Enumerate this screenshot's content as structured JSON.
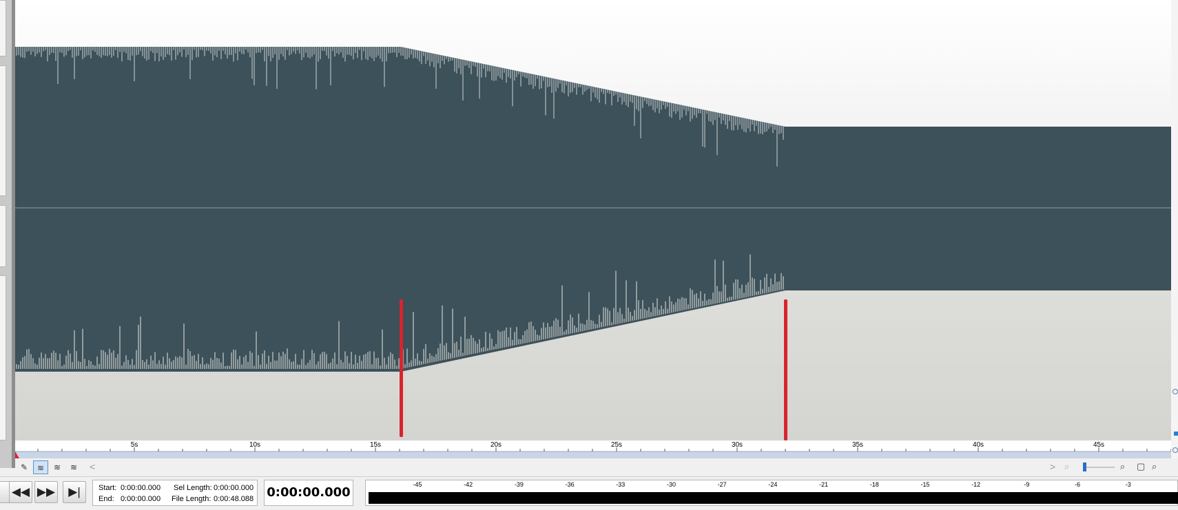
{
  "waveform": {
    "background_top": "#f8f8f8",
    "wave_color": "#3c5159",
    "marker_color": "#d8242e",
    "ruler_labels": [
      "5s",
      "10s",
      "15s",
      "20s",
      "25s",
      "30s",
      "35s",
      "40s",
      "45s"
    ]
  },
  "toolbar": {
    "tool_pencil_icon": "pencil-icon",
    "tool_wave_icon": "waveform-icon",
    "scroll_left": "<",
    "scroll_right": ">"
  },
  "transport": {
    "rewind": "◀◀",
    "forward": "▶▶",
    "end": "▶|"
  },
  "info": {
    "start_label": "Start:",
    "start_value": "0:00:00.000",
    "end_label": "End:",
    "end_value": "0:00:00.000",
    "sel_length_label": "Sel Length:",
    "sel_length_value": "0:00:00.000",
    "file_length_label": "File Length:",
    "file_length_value": "0:00:48.088"
  },
  "time_display": "0:00:00.000",
  "meter": {
    "labels": [
      "-45",
      "-42",
      "-39",
      "-36",
      "-33",
      "-30",
      "-27",
      "-24",
      "-21",
      "-18",
      "-15",
      "-12",
      "-9",
      "-6",
      "-3"
    ]
  }
}
